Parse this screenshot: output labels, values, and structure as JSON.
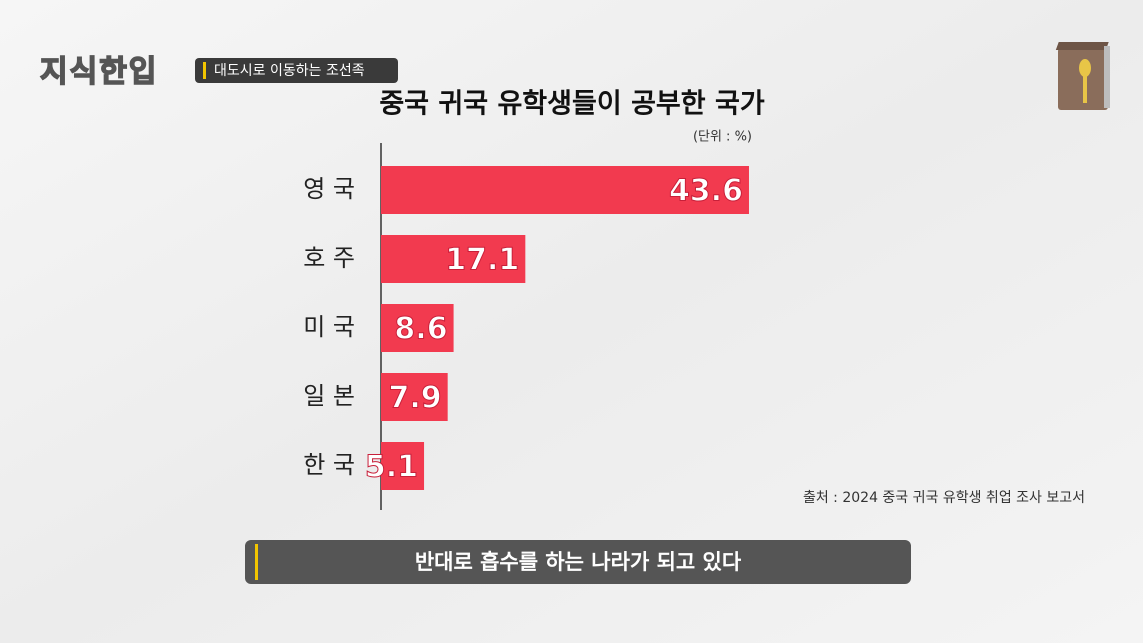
{
  "header": {
    "logo": "지식한입",
    "badge": "대도시로 이동하는 조선족"
  },
  "chart_data": {
    "type": "bar",
    "orientation": "horizontal",
    "title": "중국 귀국 유학생들이 공부한 국가",
    "unit_note": "(단위 : %)",
    "source": "출처 : 2024 중국 귀국 유학생 취업 조사 보고서",
    "categories": [
      "영 국",
      "호 주",
      "미 국",
      "일 본",
      "한 국"
    ],
    "values": [
      43.6,
      17.1,
      8.6,
      7.9,
      5.1
    ],
    "color": "#f23a4f"
  },
  "caption": "반대로 흡수를 하는 나라가 되고 있다"
}
